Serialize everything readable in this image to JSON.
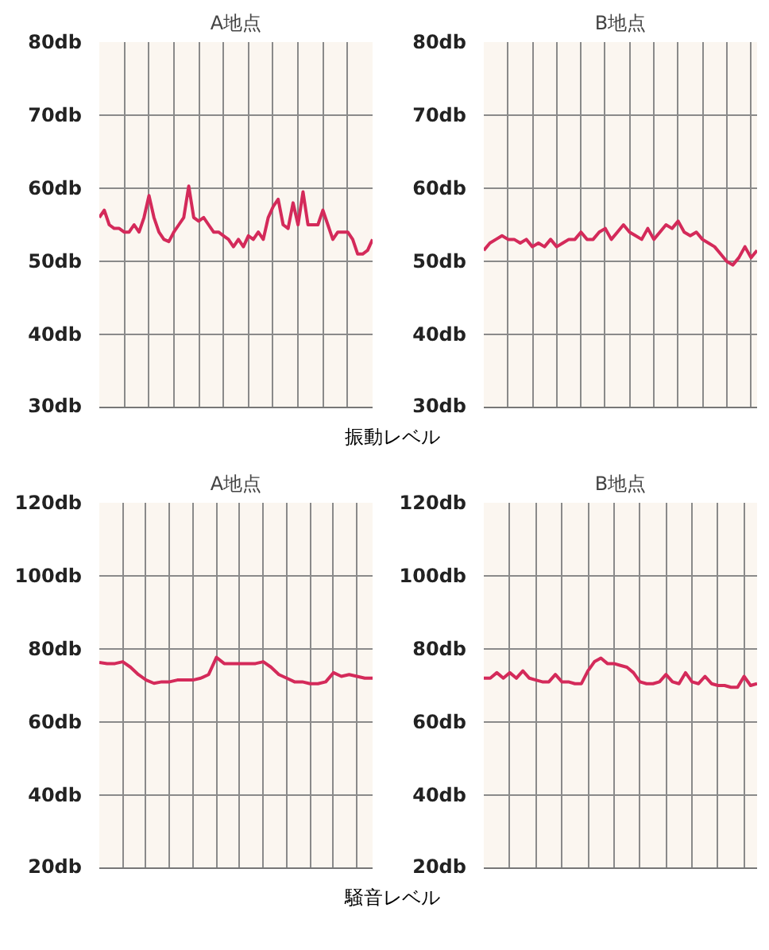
{
  "chart_data": [
    {
      "type": "line",
      "title": "A地点",
      "annotations": [
        "振動レベル"
      ],
      "tick_labels": "y",
      "grid": true,
      "line_style": "solid",
      "categories": [
        null,
        null,
        null,
        null,
        null,
        null,
        null,
        null,
        null,
        null,
        null,
        null,
        null,
        null,
        null,
        null,
        null,
        null,
        null,
        null,
        null,
        null,
        null,
        null,
        null,
        null,
        null,
        null,
        null,
        null,
        null,
        null,
        null,
        null,
        null,
        null,
        null,
        null,
        null,
        null,
        null,
        null,
        null,
        null,
        null,
        null,
        null,
        null,
        null,
        null,
        null,
        null,
        null,
        null,
        null,
        null
      ],
      "series": [
        {
          "color": "#d42a5a",
          "values": [
            56,
            57,
            55,
            54.5,
            54.5,
            54,
            54,
            55,
            54,
            56,
            59,
            56,
            54,
            53,
            52.7,
            54,
            55,
            56,
            60.3,
            56,
            55.5,
            56,
            55,
            54,
            54,
            53.5,
            53,
            52,
            53,
            52,
            53.5,
            53,
            54,
            53,
            56,
            57.5,
            58.5,
            55,
            54.5,
            58,
            55,
            59.5,
            55,
            55,
            55,
            57,
            55,
            53,
            54,
            54,
            54,
            53,
            51,
            51,
            51.5,
            53
          ]
        }
      ],
      "ylim": [
        30,
        80
      ],
      "yticks": [
        {
          "value": 30,
          "label": "30db"
        },
        {
          "value": 40,
          "label": "40db"
        },
        {
          "value": 50,
          "label": "50db"
        },
        {
          "value": 60,
          "label": "60db"
        },
        {
          "value": 70,
          "label": "70db"
        },
        {
          "value": 80,
          "label": "80db"
        }
      ]
    },
    {
      "type": "line",
      "title": "B地点",
      "tick_labels": "y",
      "grid": true,
      "line_style": "solid",
      "categories": [
        null,
        null,
        null,
        null,
        null,
        null,
        null,
        null,
        null,
        null,
        null,
        null,
        null,
        null,
        null,
        null,
        null,
        null,
        null,
        null,
        null,
        null,
        null,
        null,
        null,
        null,
        null,
        null,
        null,
        null,
        null,
        null,
        null,
        null,
        null,
        null,
        null,
        null,
        null,
        null,
        null,
        null,
        null,
        null,
        null,
        null
      ],
      "series": [
        {
          "color": "#d42a5a",
          "values": [
            51.5,
            52.5,
            53,
            53.5,
            53,
            53,
            52.5,
            53,
            52,
            52.5,
            52,
            53,
            52,
            52.5,
            53,
            53,
            54,
            53,
            53,
            54,
            54.5,
            53,
            54,
            55,
            54,
            53.5,
            53,
            54.5,
            53,
            54,
            55,
            54.5,
            55.5,
            54,
            53.5,
            54,
            53,
            52.5,
            52,
            51,
            50,
            49.5,
            50.5,
            52,
            50.5,
            51.5
          ]
        }
      ],
      "ylim": [
        30,
        80
      ],
      "yticks": [
        {
          "value": 30,
          "label": "30db"
        },
        {
          "value": 40,
          "label": "40db"
        },
        {
          "value": 50,
          "label": "50db"
        },
        {
          "value": 60,
          "label": "60db"
        },
        {
          "value": 70,
          "label": "70db"
        },
        {
          "value": 80,
          "label": "80db"
        }
      ]
    },
    {
      "type": "line",
      "title": "A地点",
      "annotations": [
        "騒音レベル"
      ],
      "tick_labels": "y",
      "grid": true,
      "line_style": "solid",
      "categories": [
        null,
        null,
        null,
        null,
        null,
        null,
        null,
        null,
        null,
        null,
        null,
        null,
        null,
        null,
        null,
        null,
        null,
        null,
        null,
        null,
        null,
        null,
        null,
        null,
        null,
        null,
        null,
        null,
        null,
        null,
        null,
        null,
        null,
        null,
        null,
        null
      ],
      "series": [
        {
          "color": "#d42a5a",
          "values": [
            76.3,
            76,
            76,
            76.5,
            75,
            73,
            71.5,
            70.6,
            71,
            71,
            71.5,
            71.5,
            71.5,
            72,
            73,
            77.7,
            76,
            76,
            76,
            76,
            76,
            76.5,
            75,
            73,
            72,
            71,
            71,
            70.5,
            70.5,
            71,
            73.5,
            72.5,
            73,
            72.5,
            72,
            72
          ]
        }
      ],
      "ylim": [
        20,
        120
      ],
      "yticks": [
        {
          "value": 20,
          "label": "20db"
        },
        {
          "value": 40,
          "label": "40db"
        },
        {
          "value": 60,
          "label": "60db"
        },
        {
          "value": 80,
          "label": "80db"
        },
        {
          "value": 100,
          "label": "100db"
        },
        {
          "value": 120,
          "label": "120db"
        }
      ]
    },
    {
      "type": "line",
      "title": "B地点",
      "tick_labels": "y",
      "grid": true,
      "line_style": "solid",
      "categories": [
        null,
        null,
        null,
        null,
        null,
        null,
        null,
        null,
        null,
        null,
        null,
        null,
        null,
        null,
        null,
        null,
        null,
        null,
        null,
        null,
        null,
        null,
        null,
        null,
        null,
        null,
        null,
        null,
        null,
        null,
        null,
        null,
        null,
        null,
        null,
        null,
        null,
        null,
        null,
        null,
        null,
        null,
        null
      ],
      "series": [
        {
          "color": "#d42a5a",
          "values": [
            72,
            72,
            73.5,
            72,
            73.5,
            72,
            74,
            72,
            71.5,
            71,
            71,
            73,
            71,
            71,
            70.5,
            70.5,
            74,
            76.5,
            77.5,
            76,
            76,
            75.5,
            75,
            73.5,
            71,
            70.5,
            70.5,
            71,
            73,
            71,
            70.5,
            73.5,
            71,
            70.5,
            72.5,
            70.5,
            70,
            70,
            69.5,
            69.5,
            72.5,
            70,
            70.5
          ]
        }
      ],
      "ylim": [
        20,
        120
      ],
      "yticks": [
        {
          "value": 20,
          "label": "20db"
        },
        {
          "value": 40,
          "label": "40db"
        },
        {
          "value": 60,
          "label": "60db"
        },
        {
          "value": 80,
          "label": "80db"
        },
        {
          "value": 100,
          "label": "100db"
        },
        {
          "value": 120,
          "label": "120db"
        }
      ]
    }
  ]
}
